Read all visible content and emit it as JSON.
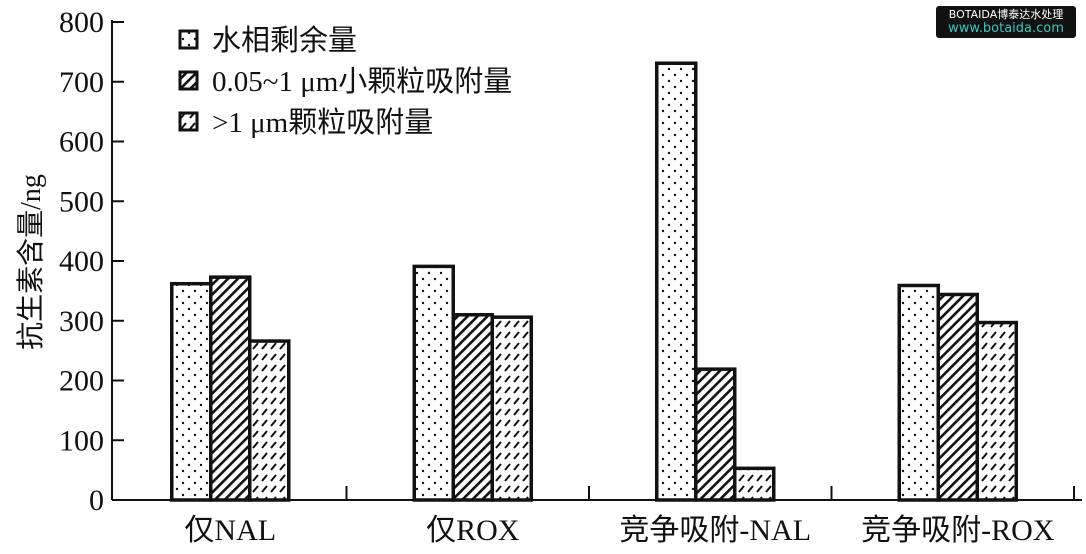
{
  "chart_data": {
    "type": "bar",
    "title": "",
    "xlabel": "",
    "ylabel": "抗生素含量/ng",
    "ylim": [
      0,
      800
    ],
    "yticks": [
      0,
      100,
      200,
      300,
      400,
      500,
      600,
      700,
      800
    ],
    "categories": [
      "仅NAL",
      "仅ROX",
      "竞争吸附-NAL",
      "竞争吸附-ROX"
    ],
    "legend_position": "top-left",
    "grid": false,
    "series": [
      {
        "name": "水相剩余量",
        "pattern": "dots",
        "values": [
          362,
          391,
          731,
          359
        ]
      },
      {
        "name": "0.05~1 μm小颗粒吸附量",
        "pattern": "diagonal-hatch",
        "values": [
          373,
          310,
          219,
          344
        ]
      },
      {
        "name": ">1 μm颗粒吸附量",
        "pattern": "dashed-slash",
        "values": [
          266,
          306,
          53,
          297
        ]
      }
    ]
  },
  "watermark": {
    "line1": "BOTAIDA博泰达水处理",
    "line2": "www.botaida.com"
  }
}
